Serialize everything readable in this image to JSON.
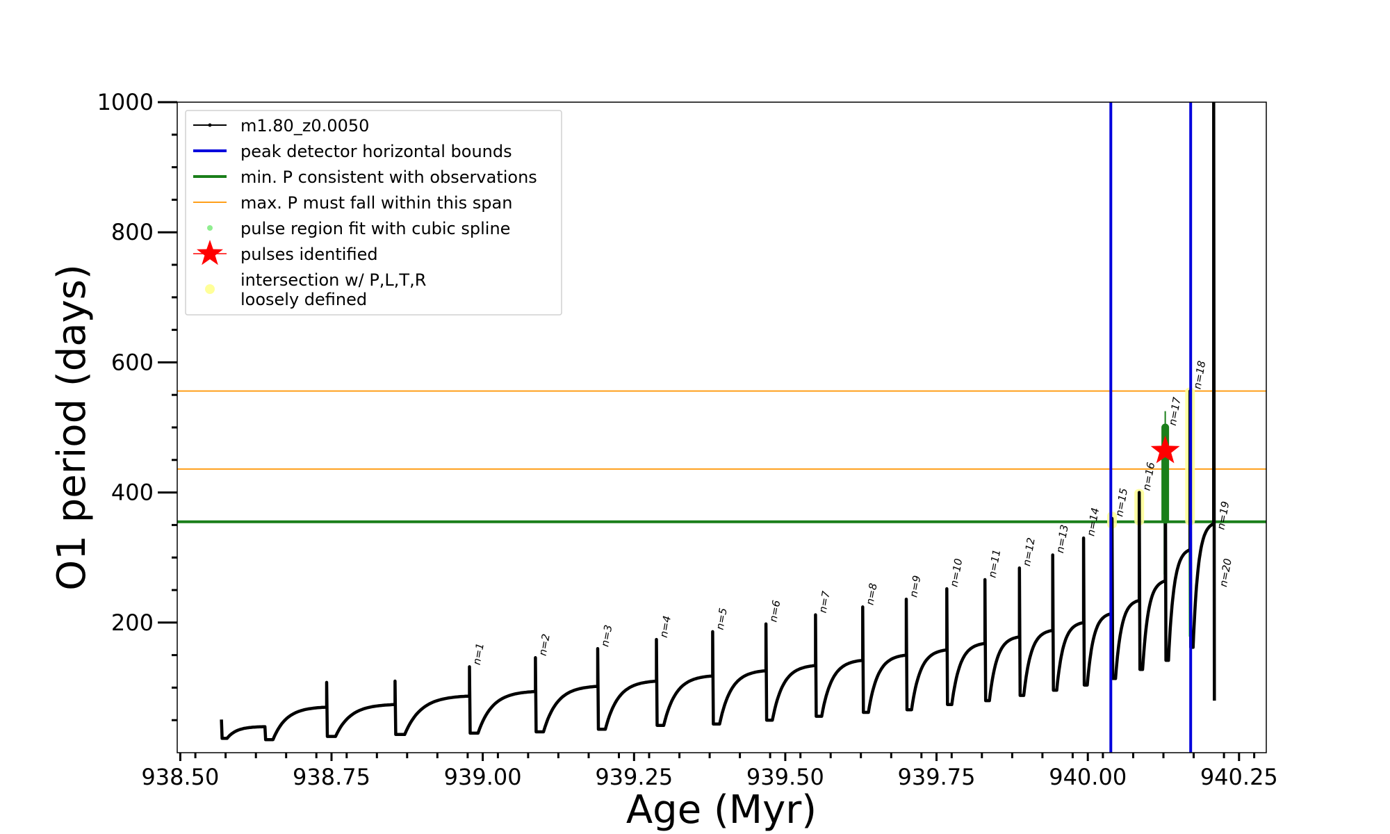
{
  "chart_data": {
    "type": "line",
    "title": "",
    "xlabel": "Age (Myr)",
    "ylabel": "O1 period (days)",
    "xlim": [
      938.495,
      940.295
    ],
    "ylim": [
      0,
      1000
    ],
    "grid": false,
    "legend_position": "top-left",
    "x_ticks": [
      {
        "value": 938.5,
        "label": "938.50"
      },
      {
        "value": 938.75,
        "label": "938.75"
      },
      {
        "value": 939.0,
        "label": "939.00"
      },
      {
        "value": 939.25,
        "label": "939.25"
      },
      {
        "value": 939.5,
        "label": "939.50"
      },
      {
        "value": 939.75,
        "label": "939.75"
      },
      {
        "value": 940.0,
        "label": "940.00"
      },
      {
        "value": 940.25,
        "label": "940.25"
      }
    ],
    "y_ticks": [
      {
        "value": 200,
        "label": "200"
      },
      {
        "value": 400,
        "label": "400"
      },
      {
        "value": 600,
        "label": "600"
      },
      {
        "value": 800,
        "label": "800"
      },
      {
        "value": 1000,
        "label": "1000"
      }
    ],
    "legend": [
      {
        "label": "m1.80_z0.0050",
        "style": "line-dot",
        "color": "#000000"
      },
      {
        "label": "peak detector horizontal bounds",
        "style": "line",
        "color": "#0000dd"
      },
      {
        "label": "min. P consistent with observations",
        "style": "line",
        "color": "#1a7f1a"
      },
      {
        "label": "max. P must fall within this span",
        "style": "thin-line",
        "color": "#ff9f1a"
      },
      {
        "label": "pulse region fit with cubic spline",
        "style": "dot",
        "color": "#90ee90"
      },
      {
        "label": "pulses identified",
        "style": "star",
        "color": "#ff0000"
      },
      {
        "label": "intersection w/ P,L,T,R\nloosely defined",
        "style": "dot",
        "color": "#ffff99"
      }
    ],
    "reference_lines": {
      "vertical_blue": [
        940.038,
        940.17
      ],
      "horizontal_green": 355,
      "horizontal_orange": [
        436,
        556
      ]
    },
    "start_point": {
      "x": 938.568,
      "y": 51
    },
    "cycles": [
      {
        "x_spike": 938.568,
        "y_trough": 22,
        "y_pre": 40,
        "x_end": 938.64
      },
      {
        "x_spike": 938.64,
        "y_peak": 40,
        "y_trough": 20,
        "y_pre": 70,
        "x_end": 938.742
      },
      {
        "x_spike": 938.742,
        "y_peak": 108,
        "y_trough": 25,
        "y_pre": 74,
        "x_end": 938.855
      },
      {
        "x_spike": 938.855,
        "y_peak": 110,
        "y_trough": 28,
        "y_pre": 87,
        "x_end": 938.978
      },
      {
        "x_spike": 938.978,
        "y_peak": 132,
        "y_trough": 30,
        "y_pre": 94,
        "x_end": 939.087,
        "label": "n=1"
      },
      {
        "x_spike": 939.087,
        "y_peak": 146,
        "y_trough": 32,
        "y_pre": 102,
        "x_end": 939.19,
        "label": "n=2"
      },
      {
        "x_spike": 939.19,
        "y_peak": 160,
        "y_trough": 36,
        "y_pre": 110,
        "x_end": 939.287,
        "label": "n=3"
      },
      {
        "x_spike": 939.287,
        "y_peak": 174,
        "y_trough": 42,
        "y_pre": 118,
        "x_end": 939.38,
        "label": "n=4"
      },
      {
        "x_spike": 939.38,
        "y_peak": 186,
        "y_trough": 44,
        "y_pre": 126,
        "x_end": 939.468,
        "label": "n=5"
      },
      {
        "x_spike": 939.468,
        "y_peak": 198,
        "y_trough": 50,
        "y_pre": 134,
        "x_end": 939.55,
        "label": "n=6"
      },
      {
        "x_spike": 939.55,
        "y_peak": 212,
        "y_trough": 56,
        "y_pre": 142,
        "x_end": 939.628,
        "label": "n=7"
      },
      {
        "x_spike": 939.628,
        "y_peak": 224,
        "y_trough": 62,
        "y_pre": 150,
        "x_end": 939.7,
        "label": "n=8"
      },
      {
        "x_spike": 939.7,
        "y_peak": 236,
        "y_trough": 66,
        "y_pre": 158,
        "x_end": 939.767,
        "label": "n=9"
      },
      {
        "x_spike": 939.767,
        "y_peak": 252,
        "y_trough": 74,
        "y_pre": 168,
        "x_end": 939.83,
        "label": "n=10"
      },
      {
        "x_spike": 939.83,
        "y_peak": 266,
        "y_trough": 80,
        "y_pre": 178,
        "x_end": 939.887,
        "label": "n=11"
      },
      {
        "x_spike": 939.887,
        "y_peak": 284,
        "y_trough": 88,
        "y_pre": 188,
        "x_end": 939.942,
        "label": "n=12"
      },
      {
        "x_spike": 939.942,
        "y_peak": 304,
        "y_trough": 96,
        "y_pre": 200,
        "x_end": 939.993,
        "label": "n=13"
      },
      {
        "x_spike": 939.993,
        "y_peak": 330,
        "y_trough": 104,
        "y_pre": 214,
        "x_end": 940.04,
        "label": "n=14"
      },
      {
        "x_spike": 940.04,
        "y_peak": 360,
        "y_trough": 114,
        "y_pre": 234,
        "x_end": 940.085,
        "label": "n=15"
      },
      {
        "x_spike": 940.085,
        "y_peak": 400,
        "y_trough": 128,
        "y_pre": 264,
        "x_end": 940.128,
        "label": "n=16"
      },
      {
        "x_spike": 940.128,
        "y_peak": 500,
        "y_trough": 142,
        "y_pre": 312,
        "x_end": 940.169,
        "label": "n=17"
      },
      {
        "x_spike": 940.169,
        "y_peak": 556,
        "y_trough": 162,
        "y_pre": 352,
        "x_end": 940.208,
        "label": "n=18"
      },
      {
        "x_spike": 940.208,
        "y_peak": 1000,
        "y_trough": 80,
        "label": "n=19"
      }
    ],
    "extra_labels": [
      {
        "x": 940.212,
        "y": 252,
        "label": "n=20"
      }
    ],
    "spline_regions": [
      {
        "x": 940.128,
        "y_min": 275,
        "y_max": 500
      },
      {
        "x": 940.169,
        "y_min": 180,
        "y_max": 550
      }
    ],
    "loose_regions": [
      {
        "x": 940.04,
        "y_min": 350,
        "y_max": 365
      },
      {
        "x": 940.085,
        "y_min": 355,
        "y_max": 400
      },
      {
        "x": 940.169,
        "y_min": 355,
        "y_max": 556
      }
    ],
    "green_segment": {
      "x": 940.128,
      "y_min": 358,
      "y_max": 500,
      "whisker_max": 525
    },
    "pulse_star": {
      "x": 940.128,
      "y": 464
    }
  }
}
